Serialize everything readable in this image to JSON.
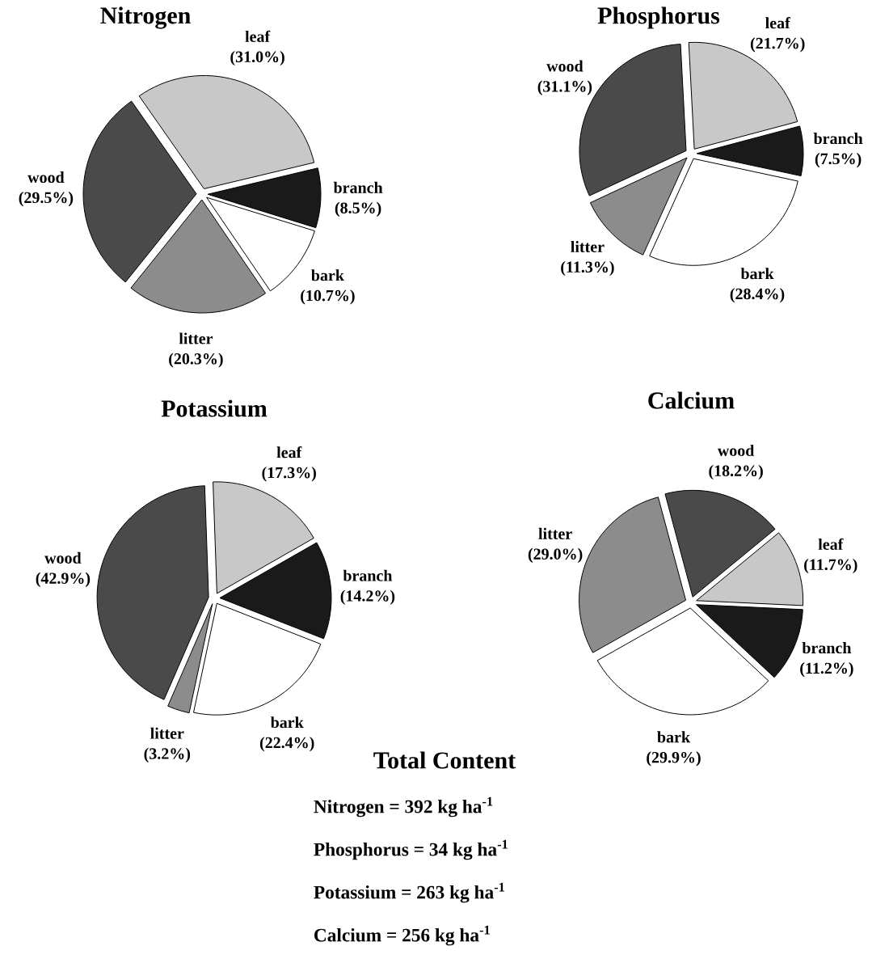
{
  "chart_data": [
    {
      "type": "pie",
      "title": "Nitrogen",
      "categories": [
        "leaf",
        "branch",
        "bark",
        "litter",
        "wood"
      ],
      "values": [
        31.0,
        8.5,
        10.7,
        20.3,
        29.5
      ],
      "value_labels": [
        "(31.0%)",
        "(8.5%)",
        "(10.7%)",
        "(20.3%)",
        "(29.5%)"
      ],
      "colors": [
        "#c8c8c8",
        "#1a1a1a",
        "#ffffff",
        "#8c8c8c",
        "#4a4a4a"
      ]
    },
    {
      "type": "pie",
      "title": "Phosphorus",
      "categories": [
        "leaf",
        "branch",
        "bark",
        "litter",
        "wood"
      ],
      "values": [
        21.7,
        7.5,
        28.4,
        11.3,
        31.1
      ],
      "value_labels": [
        "(21.7%)",
        "(7.5%)",
        "(28.4%)",
        "(11.3%)",
        "(31.1%)"
      ],
      "colors": [
        "#c8c8c8",
        "#1a1a1a",
        "#ffffff",
        "#8c8c8c",
        "#4a4a4a"
      ]
    },
    {
      "type": "pie",
      "title": "Potassium",
      "categories": [
        "leaf",
        "branch",
        "bark",
        "litter",
        "wood"
      ],
      "values": [
        17.3,
        14.2,
        22.4,
        3.2,
        42.9
      ],
      "value_labels": [
        "(17.3%)",
        "(14.2%)",
        "(22.4%)",
        "(3.2%)",
        "(42.9%)"
      ],
      "colors": [
        "#c8c8c8",
        "#1a1a1a",
        "#ffffff",
        "#8c8c8c",
        "#4a4a4a"
      ]
    },
    {
      "type": "pie",
      "title": "Calcium",
      "categories": [
        "wood",
        "leaf",
        "branch",
        "bark",
        "litter"
      ],
      "values": [
        18.2,
        11.7,
        11.2,
        29.9,
        29.0
      ],
      "value_labels": [
        "(18.2%)",
        "(11.7%)",
        "(11.2%)",
        "(29.9%)",
        "(29.0%)"
      ],
      "colors": [
        "#4a4a4a",
        "#c8c8c8",
        "#1a1a1a",
        "#ffffff",
        "#8c8c8c"
      ]
    },
    {
      "type": "other",
      "title": "Total Content",
      "annotations": [
        "Nitrogen = 392 kg ha$^{-1}$",
        "Phosphorus = 34 kg ha$^{-1}$",
        "Potassium = 263 kg ha$^{-1}$",
        "Calcium = 256 kg ha$^{-1}$"
      ]
    }
  ]
}
